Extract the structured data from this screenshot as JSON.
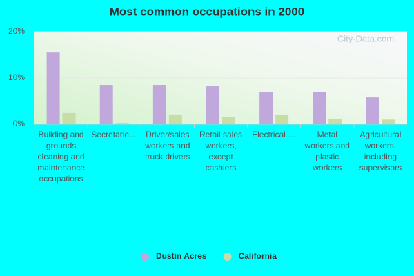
{
  "chart_data": {
    "type": "bar",
    "title": "Most common occupations in 2000",
    "watermark": "City-Data.com",
    "categories": [
      "Building and grounds cleaning and maintenance occupations",
      "Secretarie…",
      "Driver/sales workers and truck drivers",
      "Retail sales workers, except cashiers",
      "Electrical …",
      "Metal workers and plastic workers",
      "Agricultural workers, including supervisors"
    ],
    "series": [
      {
        "name": "Dustin Acres",
        "color": "#c0a8dc",
        "values": [
          15.5,
          8.5,
          8.5,
          8.2,
          7.0,
          7.0,
          5.8
        ]
      },
      {
        "name": "California",
        "color": "#c8dca8",
        "values": [
          2.4,
          0.3,
          2.1,
          1.5,
          2.1,
          1.2,
          1.0
        ]
      }
    ],
    "ylim": [
      0,
      20
    ],
    "yticks": [
      {
        "value": 0,
        "label": "0%"
      },
      {
        "value": 10,
        "label": "10%"
      },
      {
        "value": 20,
        "label": "20%"
      }
    ],
    "grid": true,
    "legend": "bottom"
  }
}
